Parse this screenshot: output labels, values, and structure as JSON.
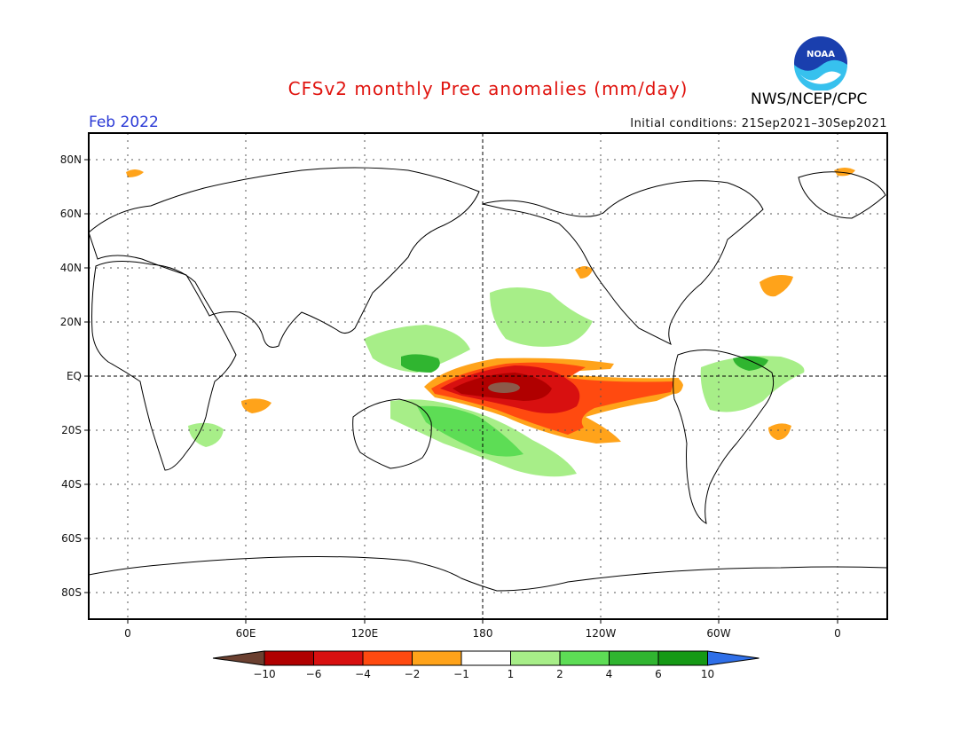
{
  "header": {
    "title": "CFSv2 monthly Prec anomalies (mm/day)",
    "title_color": "#e0140f",
    "month": "Feb 2022",
    "month_color": "#2a39d6",
    "initial_conditions": "Initial conditions: 21Sep2021–30Sep2021",
    "agency": "NWS/NCEP/CPC",
    "logo_text": "NOAA"
  },
  "map": {
    "lat_labels": [
      "80N",
      "60N",
      "40N",
      "20N",
      "EQ",
      "20S",
      "40S",
      "60S",
      "80S"
    ],
    "lon_labels": [
      "0",
      "60E",
      "120E",
      "180",
      "120W",
      "60W",
      "0"
    ]
  },
  "colorbar": {
    "labels": [
      "−10",
      "−6",
      "−4",
      "−2",
      "−1",
      "1",
      "2",
      "4",
      "6",
      "10"
    ],
    "colors": [
      "#6b4030",
      "#b00000",
      "#d81010",
      "#ff4a10",
      "#ffa31a",
      "#ffffff",
      "#a7ee88",
      "#5ddd55",
      "#30b530",
      "#159915",
      "#2f6fe8"
    ]
  }
}
